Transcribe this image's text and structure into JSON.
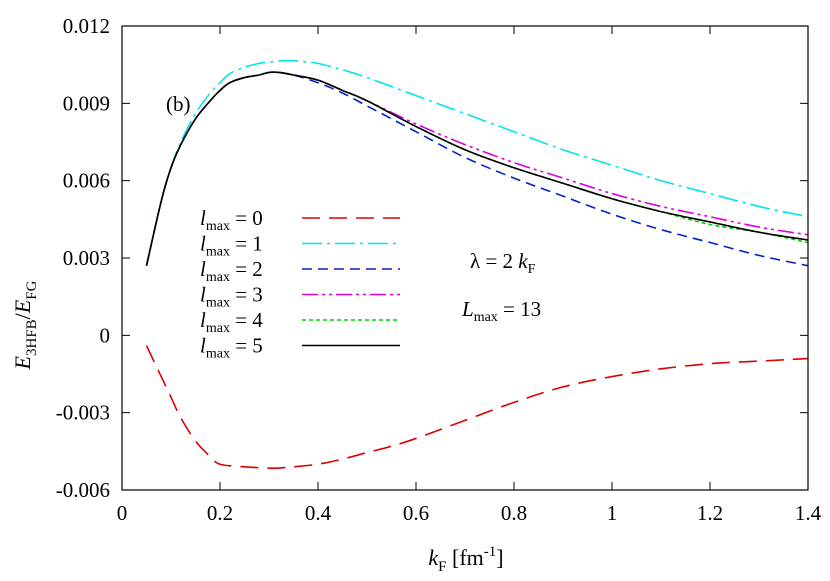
{
  "chart_data": {
    "type": "line",
    "panel_label": "(b)",
    "xlabel": {
      "main": "k",
      "sub": "F",
      "rest": " [fm",
      "sup": "-1",
      "close": "]"
    },
    "ylabel": {
      "e1": "E",
      "sub1": "3HFB",
      "slash": "/",
      "e2": "E",
      "sub2": "FG"
    },
    "xlim": [
      0,
      1.4
    ],
    "ylim": [
      -0.006,
      0.012
    ],
    "xticks": [
      0,
      0.2,
      0.4,
      0.6,
      0.8,
      1,
      1.2,
      1.4
    ],
    "xtick_labels": [
      "0",
      "0.2",
      "0.4",
      "0.6",
      "0.8",
      "1",
      "1.2",
      "1.4"
    ],
    "yticks": [
      -0.006,
      -0.003,
      0,
      0.003,
      0.006,
      0.009,
      0.012
    ],
    "ytick_labels": [
      "-0.006",
      "-0.003",
      "0",
      "0.003",
      "0.006",
      "0.009",
      "0.012"
    ],
    "annotations": {
      "lambda": {
        "sym": "λ",
        "eq": " = 2 ",
        "k": "k",
        "sub": "F"
      },
      "Lmax": {
        "L": "L",
        "sub": "max",
        "eq": " = 13"
      }
    },
    "legend": {
      "placement": "center-left"
    },
    "series": [
      {
        "name": "0",
        "color": "#dd0000",
        "dash": "18,9",
        "x": [
          0.05,
          0.08,
          0.1,
          0.12,
          0.15,
          0.18,
          0.2,
          0.25,
          0.3,
          0.32,
          0.35,
          0.4,
          0.45,
          0.5,
          0.55,
          0.6,
          0.7,
          0.8,
          0.9,
          1.0,
          1.1,
          1.2,
          1.3,
          1.4
        ],
        "y": [
          -0.0004,
          -0.0016,
          -0.0024,
          -0.0032,
          -0.0041,
          -0.0047,
          -0.005,
          -0.0051,
          -0.00515,
          -0.00515,
          -0.0051,
          -0.005,
          -0.0048,
          -0.00455,
          -0.0043,
          -0.004,
          -0.0033,
          -0.0026,
          -0.002,
          -0.0016,
          -0.0013,
          -0.0011,
          -0.001,
          -0.0009
        ]
      },
      {
        "name": "1",
        "color": "#00e5ee",
        "dash": "20,5,3,5",
        "x": [
          0.05,
          0.08,
          0.1,
          0.12,
          0.15,
          0.18,
          0.2,
          0.22,
          0.25,
          0.28,
          0.3,
          0.33,
          0.35,
          0.38,
          0.4,
          0.45,
          0.5,
          0.6,
          0.7,
          0.8,
          0.9,
          1.0,
          1.1,
          1.2,
          1.3,
          1.4
        ],
        "y": [
          0.0027,
          0.0052,
          0.0065,
          0.0075,
          0.0086,
          0.0094,
          0.0098,
          0.01015,
          0.0104,
          0.01055,
          0.0106,
          0.01065,
          0.01065,
          0.0106,
          0.01055,
          0.0103,
          0.01,
          0.0093,
          0.0086,
          0.0079,
          0.0072,
          0.0066,
          0.006,
          0.0055,
          0.005,
          0.0046
        ]
      },
      {
        "name": "2",
        "color": "#0022cc",
        "dash": "10,6",
        "x": [
          0.05,
          0.08,
          0.1,
          0.12,
          0.15,
          0.18,
          0.2,
          0.22,
          0.25,
          0.28,
          0.3,
          0.32,
          0.35,
          0.4,
          0.45,
          0.5,
          0.6,
          0.7,
          0.8,
          0.9,
          1.0,
          1.1,
          1.2,
          1.3,
          1.4
        ],
        "y": [
          0.0027,
          0.0052,
          0.0065,
          0.0074,
          0.0084,
          0.0091,
          0.0095,
          0.0098,
          0.01,
          0.0101,
          0.0102,
          0.0102,
          0.0101,
          0.0098,
          0.0094,
          0.0089,
          0.0079,
          0.0069,
          0.0061,
          0.0054,
          0.0047,
          0.0041,
          0.0036,
          0.0031,
          0.0027
        ]
      },
      {
        "name": "3",
        "color": "#dd00dd",
        "dash": "16,4,3,4,3,4",
        "x": [
          0.05,
          0.08,
          0.1,
          0.12,
          0.15,
          0.18,
          0.2,
          0.22,
          0.25,
          0.28,
          0.3,
          0.32,
          0.35,
          0.4,
          0.45,
          0.5,
          0.6,
          0.7,
          0.8,
          0.9,
          1.0,
          1.1,
          1.2,
          1.3,
          1.4
        ],
        "y": [
          0.0027,
          0.0052,
          0.0065,
          0.0074,
          0.0084,
          0.0091,
          0.0095,
          0.0098,
          0.01,
          0.0101,
          0.0102,
          0.0102,
          0.0101,
          0.0099,
          0.0095,
          0.0091,
          0.0082,
          0.0074,
          0.0067,
          0.0061,
          0.0055,
          0.005,
          0.0046,
          0.0042,
          0.0039
        ]
      },
      {
        "name": "4",
        "color": "#00cc00",
        "dash": "4,3",
        "x": [
          0.05,
          0.08,
          0.1,
          0.12,
          0.15,
          0.18,
          0.2,
          0.22,
          0.25,
          0.28,
          0.3,
          0.32,
          0.35,
          0.4,
          0.45,
          0.5,
          0.6,
          0.7,
          0.8,
          0.9,
          1.0,
          1.1,
          1.2,
          1.3,
          1.4
        ],
        "y": [
          0.0027,
          0.0052,
          0.0065,
          0.0074,
          0.0084,
          0.0091,
          0.0095,
          0.0098,
          0.01,
          0.0101,
          0.0102,
          0.0102,
          0.0101,
          0.0099,
          0.0095,
          0.0091,
          0.0081,
          0.0072,
          0.0065,
          0.0059,
          0.0053,
          0.0048,
          0.0043,
          0.004,
          0.0036
        ]
      },
      {
        "name": "5",
        "color": "#000000",
        "dash": "",
        "x": [
          0.05,
          0.08,
          0.1,
          0.12,
          0.15,
          0.18,
          0.2,
          0.22,
          0.25,
          0.28,
          0.3,
          0.32,
          0.35,
          0.4,
          0.45,
          0.5,
          0.6,
          0.7,
          0.8,
          0.9,
          1.0,
          1.1,
          1.2,
          1.3,
          1.4
        ],
        "y": [
          0.0027,
          0.0052,
          0.0065,
          0.0074,
          0.0084,
          0.0091,
          0.0095,
          0.0098,
          0.01,
          0.0101,
          0.0102,
          0.0102,
          0.0101,
          0.0099,
          0.0095,
          0.0091,
          0.0081,
          0.0072,
          0.0065,
          0.0059,
          0.0053,
          0.0048,
          0.0044,
          0.004,
          0.0037
        ]
      }
    ]
  }
}
